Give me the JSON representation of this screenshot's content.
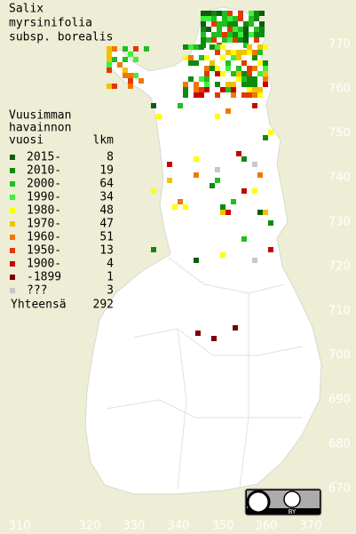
{
  "title": [
    "Salix",
    "myrsinifolia",
    "subsp. borealis"
  ],
  "legend": {
    "header": [
      "Vuusimman",
      "havainnon",
      "vuosi"
    ],
    "count_header": "lkm",
    "items": [
      {
        "label": "2015-",
        "count": 8,
        "color": "#0b5e0b"
      },
      {
        "label": "2010-",
        "count": 19,
        "color": "#0e8a0e"
      },
      {
        "label": "2000-",
        "count": 64,
        "color": "#1fbf1f"
      },
      {
        "label": "1990-",
        "count": 34,
        "color": "#3cf03c"
      },
      {
        "label": "1980-",
        "count": 48,
        "color": "#ffff00"
      },
      {
        "label": "1970-",
        "count": 47,
        "color": "#f2c200"
      },
      {
        "label": "1960-",
        "count": 51,
        "color": "#f07800"
      },
      {
        "label": "1950-",
        "count": 13,
        "color": "#e03a00"
      },
      {
        "label": "1900-",
        "count": 4,
        "color": "#c80000"
      },
      {
        "label": "-1899",
        "count": 1,
        "color": "#7a0000"
      },
      {
        "label": "???",
        "count": 3,
        "color": "#c8c8c8"
      }
    ],
    "total_label": "Yhteensä",
    "total": 292
  },
  "northing_labels": [
    770,
    760,
    750,
    740,
    730,
    720,
    710,
    700,
    690,
    680,
    670
  ],
  "easting_labels": [
    310,
    320,
    330,
    340,
    350,
    360,
    370
  ],
  "license_badge": "BY"
}
